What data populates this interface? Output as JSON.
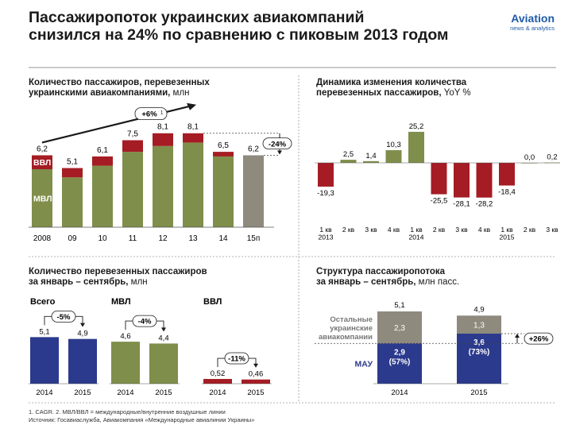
{
  "header": {
    "title_line1": "Пассажиропоток украинских авиакомпаний",
    "title_line2": "снизился на 24% по сравнению с пиковым 2013 годом",
    "logo_main": "Aviation",
    "logo_sub": "news & analytics"
  },
  "panels": {
    "p1_title_line1": "Количество пассажиров, перевезенных",
    "p1_title_line2": "украинскими авиакомпаниями,",
    "p1_title_unit": " млн",
    "p2_title_line1": "Динамика изменения количества",
    "p2_title_line2": "перевезенных пассажиров,",
    "p2_title_unit": " YoY %",
    "p3_title_line1": "Количество перевезенных пассажиров",
    "p3_title_line2": "за январь – сентябрь,",
    "p3_title_unit": " млн",
    "p4_title_line1": "Структура пассажиропотока",
    "p4_title_line2": "за январь – сентябрь,",
    "p4_title_unit": " млн пасс."
  },
  "footnote": {
    "line1": "1. CAGR. 2. МВЛ/ВВЛ = международные/внутренние воздушные линии",
    "line2": "Источник: Госавиаслужба, Авиакомпания «Международные авиалинии Украины»"
  },
  "colors": {
    "mvl": "#7f8e4a",
    "vvl": "#a51c24",
    "forecast": "#8f8a7e",
    "yoy_pos": "#7f8e4a",
    "yoy_neg": "#a51c24",
    "total": "#2b3a8c",
    "mau": "#2b3a8c",
    "others": "#8f8a7e"
  },
  "chart_data": [
    {
      "id": "annual",
      "type": "bar",
      "stacked": true,
      "categories": [
        "2008",
        "09",
        "10",
        "11",
        "12",
        "13",
        "14",
        "15п"
      ],
      "totals": [
        "6,2",
        "5,1",
        "6,1",
        "7,5",
        "8,1",
        "8,1",
        "6,5",
        "6,2"
      ],
      "total_values": [
        6.2,
        5.1,
        6.1,
        7.5,
        8.1,
        8.1,
        6.5,
        6.2
      ],
      "series": [
        {
          "name": "МВЛ",
          "values": [
            5.0,
            4.3,
            5.3,
            6.5,
            7.0,
            7.3,
            6.1,
            6.2
          ]
        },
        {
          "name": "ВВЛ",
          "values": [
            1.2,
            0.8,
            0.8,
            1.0,
            1.1,
            0.8,
            0.4,
            0
          ]
        }
      ],
      "annotations": {
        "cagr": "+6%",
        "cagr_note": "1",
        "change": "-24%"
      }
    },
    {
      "id": "yoy",
      "type": "bar",
      "categories": [
        [
          "1 кв",
          "2013"
        ],
        [
          "2 кв"
        ],
        [
          "3 кв"
        ],
        [
          "4 кв"
        ],
        [
          "1 кв",
          "2014"
        ],
        [
          "2 кв"
        ],
        [
          "3 кв"
        ],
        [
          "4 кв"
        ],
        [
          "1 кв",
          "2015"
        ],
        [
          "2 кв"
        ],
        [
          "3 кв"
        ]
      ],
      "values": [
        -19.3,
        2.5,
        1.4,
        10.3,
        25.2,
        -25.5,
        -28.1,
        -28.2,
        -18.4,
        0.0,
        0.2
      ],
      "labels": [
        "-19,3",
        "2,5",
        "1,4",
        "10,3",
        "25,2",
        "-25,5",
        "-28,1",
        "-28,2",
        "-18,4",
        "0,0",
        "0,2"
      ]
    },
    {
      "id": "janseptotal",
      "type": "bar",
      "groups": [
        {
          "name": "Всего",
          "categories": [
            "2014",
            "2015"
          ],
          "values": [
            5.1,
            4.9
          ],
          "labels": [
            "5,1",
            "4,9"
          ],
          "change": "-5%"
        },
        {
          "name": "МВЛ",
          "categories": [
            "2014",
            "2015"
          ],
          "values": [
            4.6,
            4.4
          ],
          "labels": [
            "4,6",
            "4,4"
          ],
          "change": "-4%"
        },
        {
          "name": "ВВЛ",
          "categories": [
            "2014",
            "2015"
          ],
          "values": [
            0.52,
            0.46
          ],
          "labels": [
            "0,52",
            "0,46"
          ],
          "change": "-11%"
        }
      ]
    },
    {
      "id": "structure",
      "type": "bar",
      "stacked": true,
      "categories": [
        "2014",
        "2015"
      ],
      "totals": [
        "5,1",
        "4,9"
      ],
      "total_values": [
        5.1,
        4.9
      ],
      "series": [
        {
          "name": "МАУ",
          "values": [
            2.9,
            3.6
          ],
          "labels": [
            "2,9",
            "3,6"
          ],
          "shares": [
            "(57%)",
            "(73%)"
          ]
        },
        {
          "name": "Остальные украинские авиакомпании",
          "name_lines": [
            "Остальные",
            "украинские",
            "авиакомпании"
          ],
          "values": [
            2.3,
            1.3
          ],
          "labels": [
            "2,3",
            "1,3"
          ]
        }
      ],
      "change": "+26%"
    }
  ]
}
